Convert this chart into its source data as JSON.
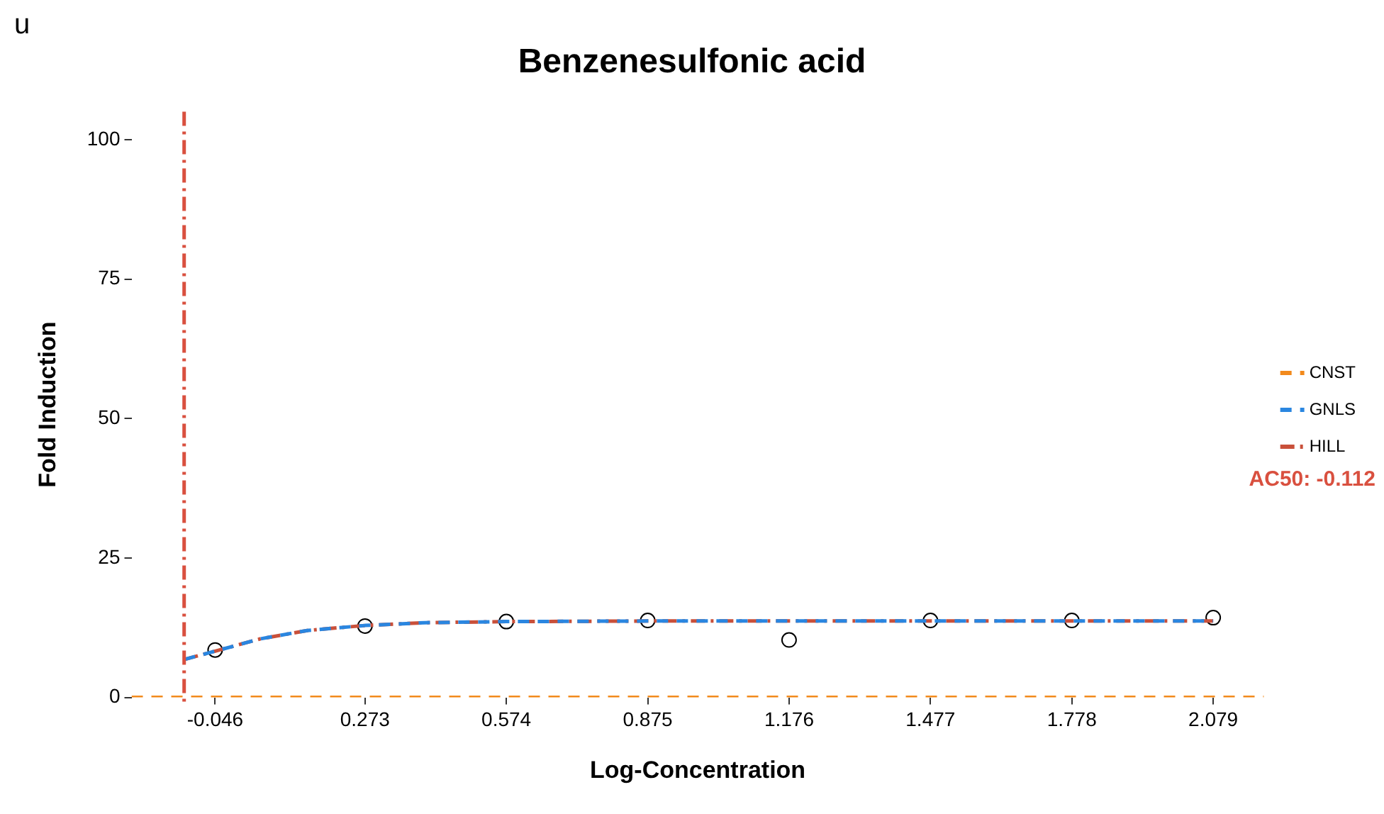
{
  "chart_data": {
    "type": "line",
    "title": "Benzenesulfonic acid",
    "xlabel": "Log-Concentration",
    "ylabel": "Fold Induction",
    "annotations": [
      "u"
    ],
    "xlim": [
      -0.224,
      2.187
    ],
    "xticks": [
      -0.046,
      0.273,
      0.574,
      0.875,
      1.176,
      1.477,
      1.778,
      2.079
    ],
    "ylim": [
      0,
      105
    ],
    "yticks": [
      0,
      25,
      50,
      75,
      100
    ],
    "grid": false,
    "legend": "right",
    "series": [
      {
        "name": "CNST",
        "color": "#f28a1c",
        "line_style": "dashed",
        "marker": "none",
        "x": [
          -0.224,
          2.187
        ],
        "values": [
          0,
          0
        ]
      },
      {
        "name": "GNLS",
        "color": "#2a86e0",
        "line_style": "dashed",
        "marker": "none",
        "x": [
          -0.112,
          -0.046,
          0.05,
          0.15,
          0.273,
          0.4,
          0.574,
          0.875,
          1.176,
          1.477,
          1.778,
          2.079
        ],
        "values": [
          6.8,
          8.3,
          10.5,
          12,
          12.9,
          13.4,
          13.6,
          13.7,
          13.7,
          13.7,
          13.7,
          13.7
        ]
      },
      {
        "name": "HILL",
        "color": "#c9503a",
        "line_style": "dashdot",
        "marker": "none",
        "x": [
          -0.112,
          -0.046,
          0.05,
          0.15,
          0.273,
          0.4,
          0.574,
          0.875,
          1.176,
          1.477,
          1.778,
          2.079
        ],
        "values": [
          6.8,
          8.3,
          10.5,
          12,
          12.9,
          13.4,
          13.6,
          13.7,
          13.7,
          13.7,
          13.7,
          13.7
        ]
      },
      {
        "type": "scatter",
        "color": "#000000",
        "marker": "circle",
        "x": [
          -0.046,
          0.273,
          0.574,
          0.875,
          1.176,
          1.477,
          1.778,
          2.079
        ],
        "values": [
          8.5,
          12.8,
          13.6,
          13.8,
          10.3,
          13.8,
          13.8,
          14.3
        ]
      }
    ],
    "ref_lines": [
      {
        "axis": "x",
        "value": -0.112,
        "label": "AC50: -0.112",
        "color": "#d9503f",
        "line_style": "dashdot"
      }
    ]
  }
}
